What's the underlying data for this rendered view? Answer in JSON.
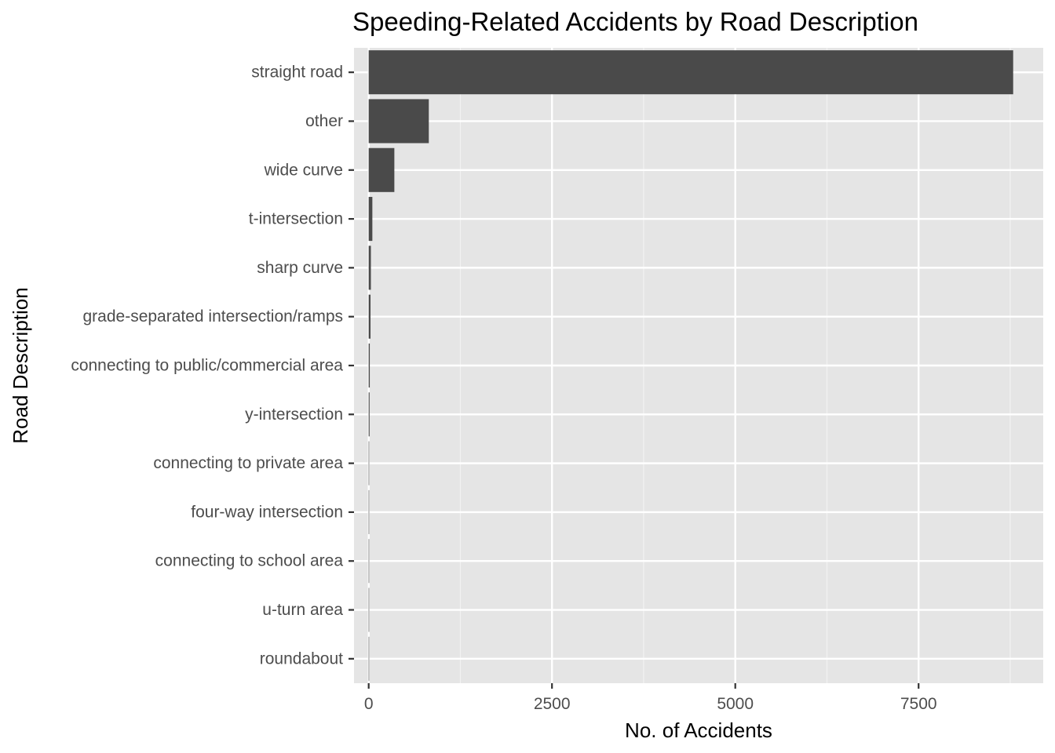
{
  "chart_data": {
    "type": "bar",
    "orientation": "horizontal",
    "title": "Speeding-Related Accidents by Road Description",
    "xlabel": "No. of Accidents",
    "ylabel": "Road Description",
    "categories": [
      "straight road",
      "other",
      "wide curve",
      "t-intersection",
      "sharp curve",
      "grade-separated intersection/ramps",
      "connecting to public/commercial area",
      "y-intersection",
      "connecting to private area",
      "four-way intersection",
      "connecting to school area",
      "u-turn area",
      "roundabout"
    ],
    "values": [
      8790,
      820,
      350,
      50,
      30,
      25,
      15,
      12,
      6,
      5,
      4,
      3,
      2
    ],
    "xlim": [
      -200,
      9200
    ],
    "x_ticks": [
      0,
      2500,
      5000,
      7500
    ],
    "x_tick_labels": [
      "0",
      "2500",
      "5000",
      "7500"
    ],
    "grid": true,
    "legend": "none",
    "colors": {
      "bar": "#4a4a4a",
      "panel_background": "#e5e5e5",
      "grid_major": "#ffffff",
      "grid_minor": "#f2f2f2",
      "tick_label": "#4d4d4d",
      "tick_mark": "#333333"
    }
  }
}
